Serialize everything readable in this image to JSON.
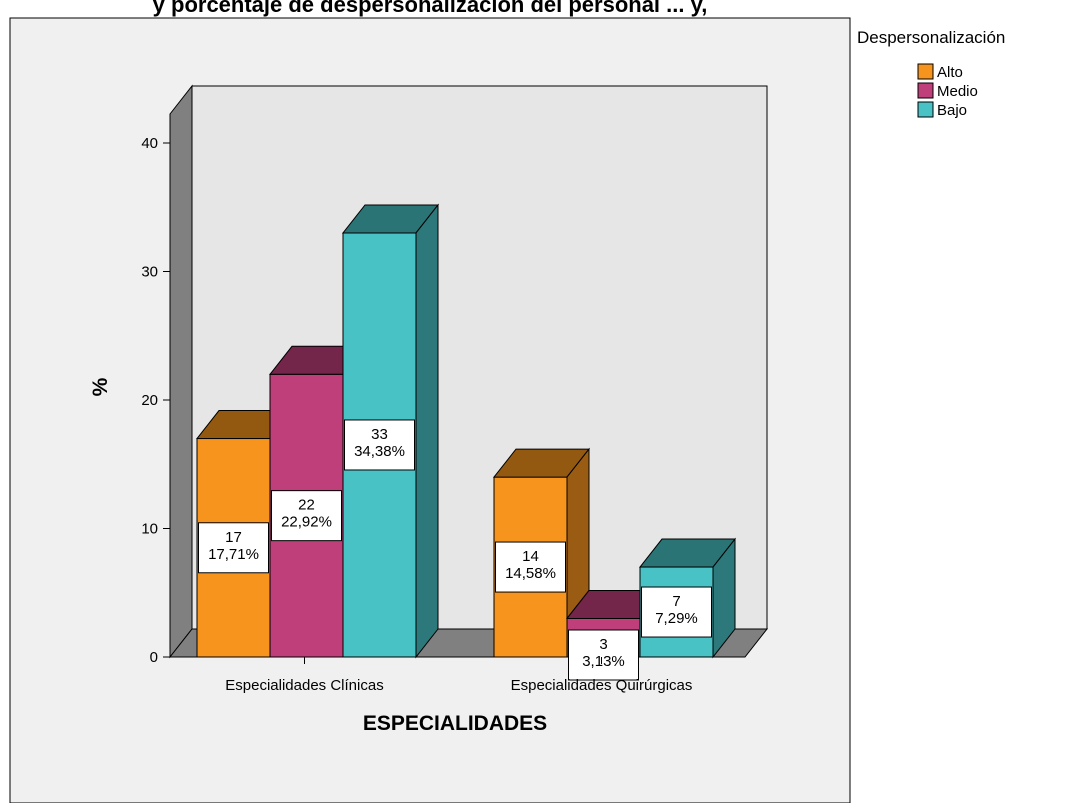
{
  "chart_data": {
    "type": "bar",
    "title": "y porcentaje de despersonalización del personal ... y,",
    "xlabel": "ESPECIALIDADES",
    "ylabel": "%",
    "ylim": [
      0,
      40
    ],
    "yticks": [
      0,
      10,
      20,
      30,
      40
    ],
    "categories": [
      "Especialidades Clínicas",
      "Especialidades Quirúrgicas"
    ],
    "legend_title": "Despersonalización",
    "legend_position": "top-right",
    "series": [
      {
        "name": "Alto",
        "color": "#f7941d",
        "values": [
          17,
          14
        ],
        "labels": [
          "17\n17,71%",
          "14\n14,58%"
        ]
      },
      {
        "name": "Medio",
        "color": "#bf3f7a",
        "values": [
          22,
          3
        ],
        "labels": [
          "22\n22,92%",
          "3\n3,13%"
        ]
      },
      {
        "name": "Bajo",
        "color": "#48c2c5",
        "values": [
          33,
          7
        ],
        "labels": [
          "33\n34,38%",
          "7\n7,29%"
        ]
      }
    ],
    "grid": false,
    "style": "3d"
  }
}
